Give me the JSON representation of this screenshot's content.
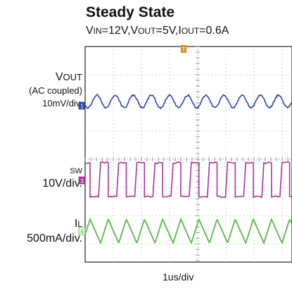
{
  "chart_data": {
    "type": "line",
    "title": "Steady State",
    "subtitle": {
      "v_in_prefix": "V",
      "v_in_sub": "IN",
      "v_in_value": "=12V,",
      "v_out_prefix": "V",
      "v_out_sub": "OUT",
      "v_out_value": "=5V,",
      "i_out_prefix": "I",
      "i_out_sub": "OUT",
      "i_out_value": "=0.6A"
    },
    "xlabel": "1us/div",
    "grid": true,
    "time_divisions": 10,
    "x_range_us": [
      0,
      10
    ],
    "trigger_marker": "T",
    "channels": [
      {
        "id": "1",
        "name_prefix": "V",
        "name_sub": "OUT",
        "note": "(AC coupled)",
        "scale": "10mV/div.",
        "color": "#3344aa",
        "waveform": "sine",
        "cycles_in_view": 11.4,
        "peak_to_peak_div": 0.45
      },
      {
        "id": "3",
        "name_prefix": "",
        "name_sub": "SW",
        "note": "",
        "scale": "10V/div.",
        "color": "#b0309a",
        "waveform": "square",
        "cycles_in_view": 11.4,
        "duty_cycle": 0.42,
        "amplitude_div": 1.2,
        "low_v": 0,
        "high_v": 12
      },
      {
        "id": "4",
        "name_prefix": "I",
        "name_sub": "L",
        "note": "",
        "scale": "500mA/div.",
        "color": "#55bb44",
        "waveform": "triangle",
        "cycles_in_view": 11.4,
        "peak_to_peak_div": 0.85
      }
    ]
  }
}
